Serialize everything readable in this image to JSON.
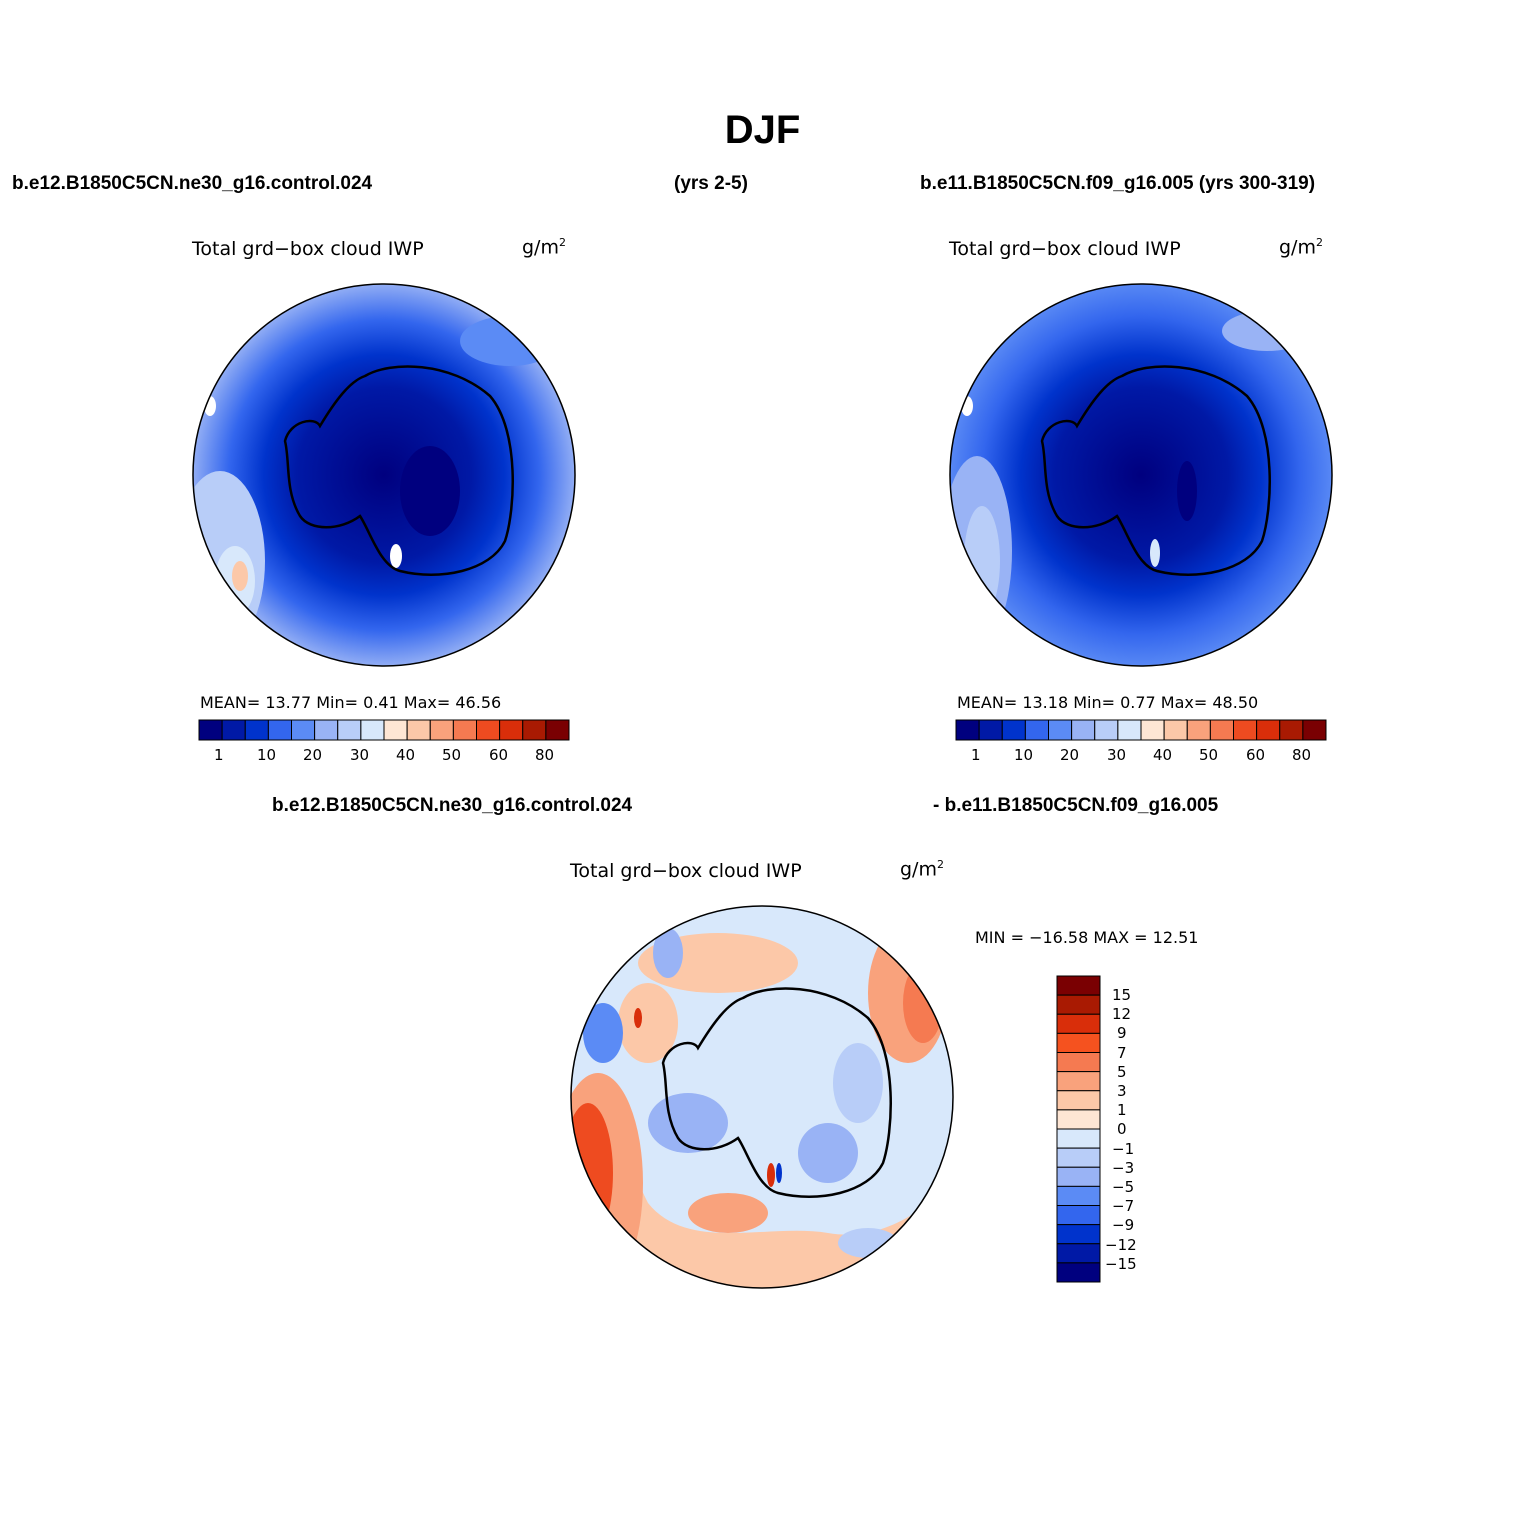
{
  "title": "DJF",
  "headers": {
    "case1": "b.e12.B1850C5CN.ne30_g16.control.024",
    "case1_years": "(yrs 2-5)",
    "case2": "b.e11.B1850C5CN.f09_g16.005 (yrs 300-319)",
    "diff_left": "b.e12.B1850C5CN.ne30_g16.control.024",
    "diff_right": "- b.e11.B1850C5CN.f09_g16.005"
  },
  "panels": [
    {
      "name": "case1",
      "variable": "Total grd−box cloud IWP",
      "units_base": "g/m",
      "units_exp": "2",
      "stats_text": "MEAN=   13.77   Min=     0.41   Max=   46.56",
      "stats": {
        "mean": 13.77,
        "min": 0.41,
        "max": 46.56
      }
    },
    {
      "name": "case2",
      "variable": "Total grd−box cloud IWP",
      "units_base": "g/m",
      "units_exp": "2",
      "stats_text": "MEAN=   13.18   Min=     0.77   Max=   48.50",
      "stats": {
        "mean": 13.18,
        "min": 0.77,
        "max": 48.5
      }
    },
    {
      "name": "difference",
      "variable": "Total grd−box cloud IWP",
      "units_base": "g/m",
      "units_exp": "2",
      "stats_text": "MIN = −16.58 MAX =   12.51",
      "stats": {
        "min": -16.58,
        "max": 12.51
      }
    }
  ],
  "abs_colorbar": {
    "colors": [
      "#00007f",
      "#0019a6",
      "#0033cc",
      "#3366ee",
      "#5b8bf5",
      "#99b3f5",
      "#b8cdf8",
      "#d8e8fb",
      "#fee6d4",
      "#fcc8a8",
      "#f9a27c",
      "#f57a51",
      "#ee4b20",
      "#d92e0a",
      "#a91a02",
      "#7a0002"
    ],
    "labels": [
      "1",
      "10",
      "20",
      "30",
      "40",
      "50",
      "60",
      "80"
    ]
  },
  "diff_colorbar": {
    "colors_top_to_bottom": [
      "#7a0002",
      "#a91a02",
      "#d92e0a",
      "#f5521f",
      "#f57a51",
      "#f9a27c",
      "#fcc8a8",
      "#fee6d4",
      "#d8e8fb",
      "#b8cdf8",
      "#99b3f5",
      "#5b8bf5",
      "#3366ee",
      "#0033cc",
      "#0019a6",
      "#00007f"
    ],
    "labels": [
      "15",
      "12",
      "9",
      "7",
      "5",
      "3",
      "1",
      "0",
      "−1",
      "−3",
      "−5",
      "−7",
      "−9",
      "−12",
      "−15"
    ]
  }
}
